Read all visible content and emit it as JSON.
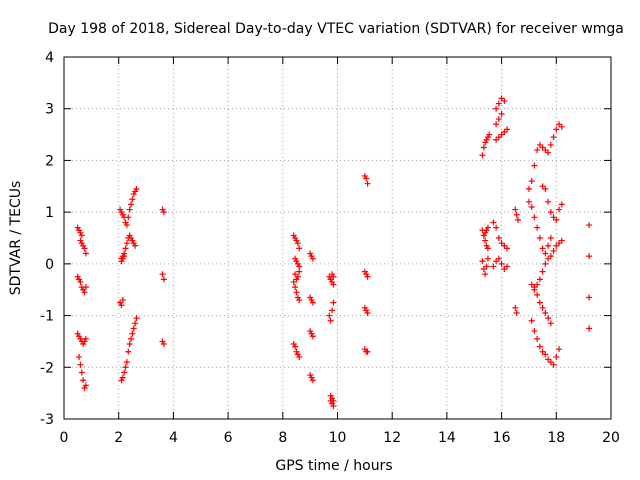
{
  "chart_data": {
    "type": "scatter",
    "title": "Day 198 of 2018, Sidereal Day-to-day VTEC variation (SDTVAR) for receiver wmga",
    "xlabel": "GPS time / hours",
    "ylabel": "SDTVAR / TECUs",
    "xlim": [
      0,
      20
    ],
    "ylim": [
      -3,
      4
    ],
    "xticks": [
      0,
      2,
      4,
      6,
      8,
      10,
      12,
      14,
      16,
      18,
      20
    ],
    "yticks": [
      -3,
      -2,
      -1,
      0,
      1,
      2,
      3,
      4
    ],
    "grid": true,
    "marker": "+",
    "color": "#ff0000",
    "series": [
      {
        "name": "SDTVAR",
        "x": [
          0.5,
          0.55,
          0.6,
          0.65,
          0.5,
          0.55,
          0.6,
          0.65,
          0.7,
          0.75,
          0.8,
          0.6,
          0.65,
          0.7,
          0.75,
          0.8,
          0.5,
          0.55,
          0.6,
          0.65,
          0.7,
          0.75,
          0.8,
          0.55,
          0.6,
          0.65,
          0.7,
          0.75,
          0.8,
          2.05,
          2.1,
          2.15,
          2.2,
          2.25,
          2.3,
          2.35,
          2.4,
          2.45,
          2.5,
          2.55,
          2.6,
          2.65,
          2.1,
          2.15,
          2.2,
          2.25,
          2.3,
          2.35,
          2.4,
          2.45,
          2.5,
          2.55,
          2.6,
          2.1,
          2.15,
          2.2,
          2.25,
          2.3,
          2.35,
          2.4,
          2.45,
          2.5,
          2.55,
          2.6,
          2.65,
          2.05,
          2.1,
          2.15,
          2.1,
          2.15,
          2.2,
          3.6,
          3.65,
          3.6,
          3.65,
          3.6,
          3.65,
          8.4,
          8.45,
          8.5,
          8.55,
          8.6,
          8.4,
          8.45,
          8.5,
          8.55,
          8.6,
          8.45,
          8.5,
          8.55,
          8.6,
          8.45,
          8.5,
          8.55,
          8.6,
          8.4,
          8.45,
          8.5,
          8.55,
          8.6,
          9.0,
          9.05,
          9.1,
          9.0,
          9.05,
          9.1,
          9.0,
          9.05,
          9.1,
          9.0,
          9.05,
          9.1,
          9.7,
          9.75,
          9.8,
          9.85,
          9.7,
          9.75,
          9.8,
          9.85,
          9.75,
          9.8,
          9.85,
          9.75,
          9.8,
          9.85,
          9.75,
          9.8,
          9.85,
          11.0,
          11.05,
          11.1,
          11.0,
          11.05,
          11.1,
          11.0,
          11.05,
          11.1,
          11.0,
          11.05,
          11.1,
          15.3,
          15.35,
          15.4,
          15.45,
          15.5,
          15.55,
          15.3,
          15.35,
          15.4,
          15.45,
          15.5,
          15.3,
          15.35,
          15.4,
          15.45,
          15.5,
          15.35,
          15.4,
          15.45,
          15.5,
          15.8,
          15.9,
          16.0,
          16.1,
          16.2,
          15.8,
          15.9,
          16.0,
          15.7,
          15.8,
          15.9,
          16.0,
          16.1,
          16.2,
          15.7,
          15.8,
          15.9,
          16.0,
          16.1,
          16.2,
          15.8,
          15.9,
          16.0,
          16.1,
          16.5,
          16.55,
          16.6,
          16.5,
          16.55,
          17.0,
          17.1,
          17.2,
          17.3,
          17.4,
          17.5,
          17.6,
          17.7,
          17.8,
          17.9,
          18.0,
          18.1,
          18.2,
          17.0,
          17.1,
          17.2,
          17.3,
          17.4,
          17.5,
          17.6,
          17.7,
          17.8,
          17.1,
          17.2,
          17.3,
          17.4,
          17.5,
          17.6,
          17.7,
          17.8,
          17.9,
          18.0,
          18.1,
          17.2,
          17.3,
          17.4,
          17.5,
          17.6,
          17.7,
          17.8,
          17.9,
          18.0,
          18.1,
          18.2,
          17.5,
          17.6,
          17.7,
          17.8,
          17.9,
          18.0,
          18.1,
          18.2,
          17.1,
          17.2,
          17.3,
          17.4,
          17.5,
          17.6,
          17.7,
          17.8,
          19.2,
          19.2,
          19.2,
          19.2
        ],
        "y": [
          0.7,
          0.65,
          0.6,
          0.55,
          -0.25,
          -0.3,
          -0.35,
          -0.45,
          -0.5,
          -0.55,
          -0.45,
          0.45,
          0.4,
          0.35,
          0.3,
          0.2,
          -1.35,
          -1.4,
          -1.45,
          -1.5,
          -1.55,
          -1.5,
          -1.45,
          -1.8,
          -1.95,
          -2.1,
          -2.25,
          -2.4,
          -2.35,
          1.05,
          1.0,
          0.95,
          0.9,
          0.8,
          0.75,
          0.9,
          1.05,
          1.15,
          1.25,
          1.35,
          1.4,
          1.45,
          0.1,
          0.15,
          0.2,
          0.3,
          0.4,
          0.5,
          0.55,
          0.5,
          0.45,
          0.4,
          0.35,
          -2.25,
          -2.2,
          -2.1,
          -2.0,
          -1.9,
          -1.7,
          -1.55,
          -1.45,
          -1.35,
          -1.25,
          -1.15,
          -1.05,
          -0.75,
          -0.8,
          -0.7,
          0.05,
          0.1,
          0.15,
          1.05,
          1.0,
          -0.2,
          -0.3,
          -1.5,
          -1.55,
          0.55,
          0.5,
          0.45,
          0.4,
          0.3,
          -0.35,
          -0.45,
          -0.55,
          -0.65,
          -0.7,
          0.1,
          0.05,
          0.0,
          -0.05,
          -0.2,
          -0.3,
          -0.25,
          -0.15,
          -1.55,
          -1.6,
          -1.7,
          -1.75,
          -1.8,
          0.2,
          0.15,
          0.1,
          -0.65,
          -0.7,
          -0.75,
          -1.3,
          -1.35,
          -1.4,
          -2.15,
          -2.2,
          -2.25,
          -0.25,
          -0.3,
          -0.35,
          -0.4,
          -1.0,
          -1.1,
          -0.9,
          -0.75,
          -2.55,
          -2.7,
          -2.75,
          -2.65,
          -2.6,
          -2.65,
          -0.3,
          -0.2,
          -0.25,
          1.7,
          1.65,
          1.55,
          -0.15,
          -0.2,
          -0.25,
          -0.85,
          -0.9,
          -0.95,
          -1.65,
          -1.7,
          -1.7,
          2.1,
          2.25,
          2.35,
          2.4,
          2.45,
          2.5,
          0.65,
          0.55,
          0.45,
          0.35,
          0.3,
          0.05,
          -0.1,
          -0.2,
          -0.05,
          0.1,
          0.55,
          0.6,
          0.65,
          0.7,
          2.4,
          2.45,
          2.5,
          2.55,
          2.6,
          2.7,
          2.8,
          2.9,
          0.8,
          0.7,
          0.5,
          0.4,
          0.35,
          0.3,
          -0.05,
          0.05,
          0.1,
          0.0,
          -0.1,
          -0.05,
          3.0,
          3.1,
          3.2,
          3.15,
          1.05,
          0.95,
          0.85,
          -0.85,
          -0.95,
          1.45,
          1.6,
          1.9,
          2.2,
          2.3,
          2.25,
          2.2,
          2.15,
          2.3,
          2.45,
          2.6,
          2.7,
          2.65,
          1.2,
          1.1,
          0.9,
          0.7,
          0.5,
          0.3,
          0.2,
          0.35,
          0.5,
          -1.1,
          -1.3,
          -1.45,
          -1.6,
          -1.7,
          -1.75,
          -1.85,
          -1.9,
          -1.95,
          -1.8,
          -1.65,
          -0.45,
          -0.4,
          -0.3,
          -0.15,
          0.0,
          0.1,
          0.15,
          0.25,
          0.35,
          0.4,
          0.45,
          1.5,
          1.45,
          1.2,
          1.0,
          0.9,
          0.85,
          1.05,
          1.15,
          -0.4,
          -0.5,
          -0.6,
          -0.75,
          -0.85,
          -0.95,
          -1.05,
          -1.15,
          0.75,
          0.15,
          -0.65,
          -1.25
        ]
      }
    ]
  }
}
